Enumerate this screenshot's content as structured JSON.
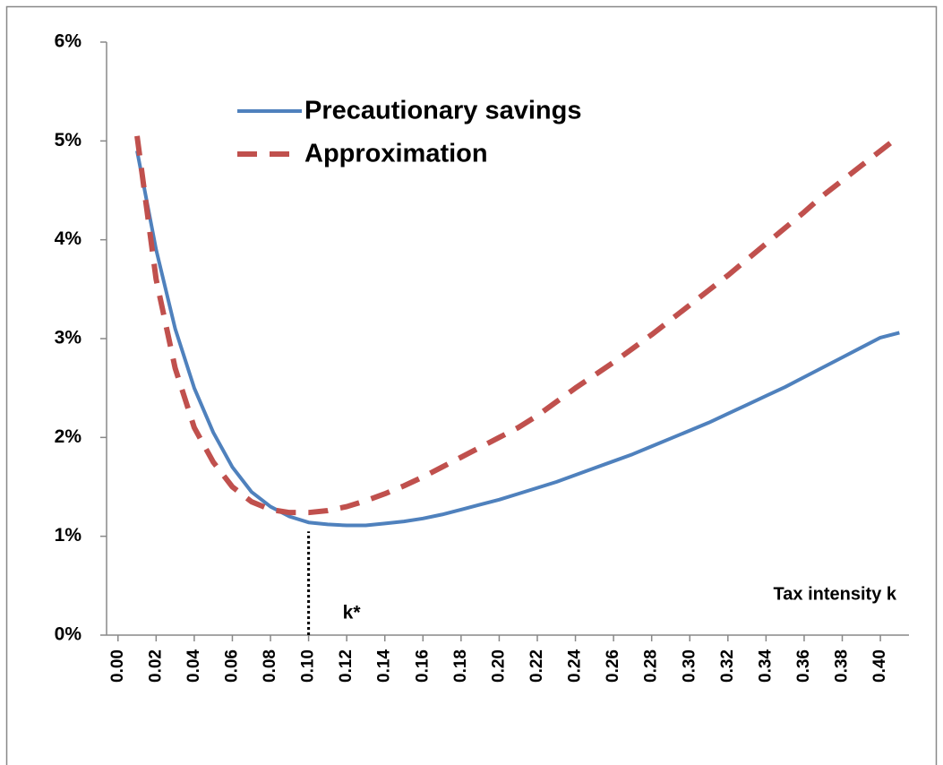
{
  "chart_data": {
    "type": "line",
    "x": [
      0.01,
      0.02,
      0.03,
      0.04,
      0.05,
      0.06,
      0.07,
      0.08,
      0.09,
      0.1,
      0.11,
      0.12,
      0.13,
      0.14,
      0.15,
      0.16,
      0.17,
      0.18,
      0.19,
      0.2,
      0.21,
      0.22,
      0.23,
      0.24,
      0.25,
      0.26,
      0.27,
      0.28,
      0.29,
      0.3,
      0.31,
      0.32,
      0.33,
      0.34,
      0.35,
      0.36,
      0.37,
      0.38,
      0.39,
      0.4,
      0.41
    ],
    "series": [
      {
        "name": "Precautionary savings",
        "color": "#4f81bd",
        "dash": false,
        "values": [
          4.9,
          3.9,
          3.1,
          2.5,
          2.05,
          1.7,
          1.45,
          1.3,
          1.2,
          1.14,
          1.12,
          1.11,
          1.11,
          1.13,
          1.15,
          1.18,
          1.22,
          1.27,
          1.32,
          1.37,
          1.43,
          1.49,
          1.55,
          1.62,
          1.69,
          1.76,
          1.83,
          1.91,
          1.99,
          2.07,
          2.15,
          2.24,
          2.33,
          2.42,
          2.51,
          2.61,
          2.71,
          2.81,
          2.91,
          3.01,
          3.06
        ]
      },
      {
        "name": "Approximation",
        "color": "#c0504d",
        "dash": true,
        "values": [
          5.05,
          3.6,
          2.7,
          2.1,
          1.75,
          1.5,
          1.35,
          1.27,
          1.24,
          1.24,
          1.26,
          1.3,
          1.36,
          1.43,
          1.51,
          1.6,
          1.7,
          1.8,
          1.9,
          2.0,
          2.1,
          2.22,
          2.36,
          2.5,
          2.63,
          2.76,
          2.9,
          3.04,
          3.19,
          3.34,
          3.49,
          3.64,
          3.8,
          3.96,
          4.12,
          4.28,
          4.45,
          4.6,
          4.75,
          4.9,
          5.05
        ]
      }
    ],
    "xlim": [
      -0.006,
      0.415
    ],
    "xticks": [
      {
        "value": 0,
        "label": "0.00"
      },
      {
        "value": 0.02,
        "label": "0.02"
      },
      {
        "value": 0.04,
        "label": "0.04"
      },
      {
        "value": 0.06,
        "label": "0.06"
      },
      {
        "value": 0.08,
        "label": "0.08"
      },
      {
        "value": 0.1,
        "label": "0.10"
      },
      {
        "value": 0.12,
        "label": "0.12"
      },
      {
        "value": 0.14,
        "label": "0.14"
      },
      {
        "value": 0.16,
        "label": "0.16"
      },
      {
        "value": 0.18,
        "label": "0.18"
      },
      {
        "value": 0.2,
        "label": "0.20"
      },
      {
        "value": 0.22,
        "label": "0.22"
      },
      {
        "value": 0.24,
        "label": "0.24"
      },
      {
        "value": 0.26,
        "label": "0.26"
      },
      {
        "value": 0.28,
        "label": "0.28"
      },
      {
        "value": 0.3,
        "label": "0.30"
      },
      {
        "value": 0.32,
        "label": "0.32"
      },
      {
        "value": 0.34,
        "label": "0.34"
      },
      {
        "value": 0.36,
        "label": "0.36"
      },
      {
        "value": 0.38,
        "label": "0.38"
      },
      {
        "value": 0.4,
        "label": "0.40"
      }
    ],
    "ylim": [
      0,
      6
    ],
    "yticks": [
      {
        "value": 0,
        "label": "0%"
      },
      {
        "value": 1,
        "label": "1%"
      },
      {
        "value": 2,
        "label": "2%"
      },
      {
        "value": 3,
        "label": "3%"
      },
      {
        "value": 4,
        "label": "4%"
      },
      {
        "value": 5,
        "label": "5%"
      },
      {
        "value": 6,
        "label": "6%"
      }
    ],
    "x_label": "Tax intensity k",
    "annotation": {
      "text": "k*",
      "x": 0.1
    },
    "legend": "upper-left"
  }
}
